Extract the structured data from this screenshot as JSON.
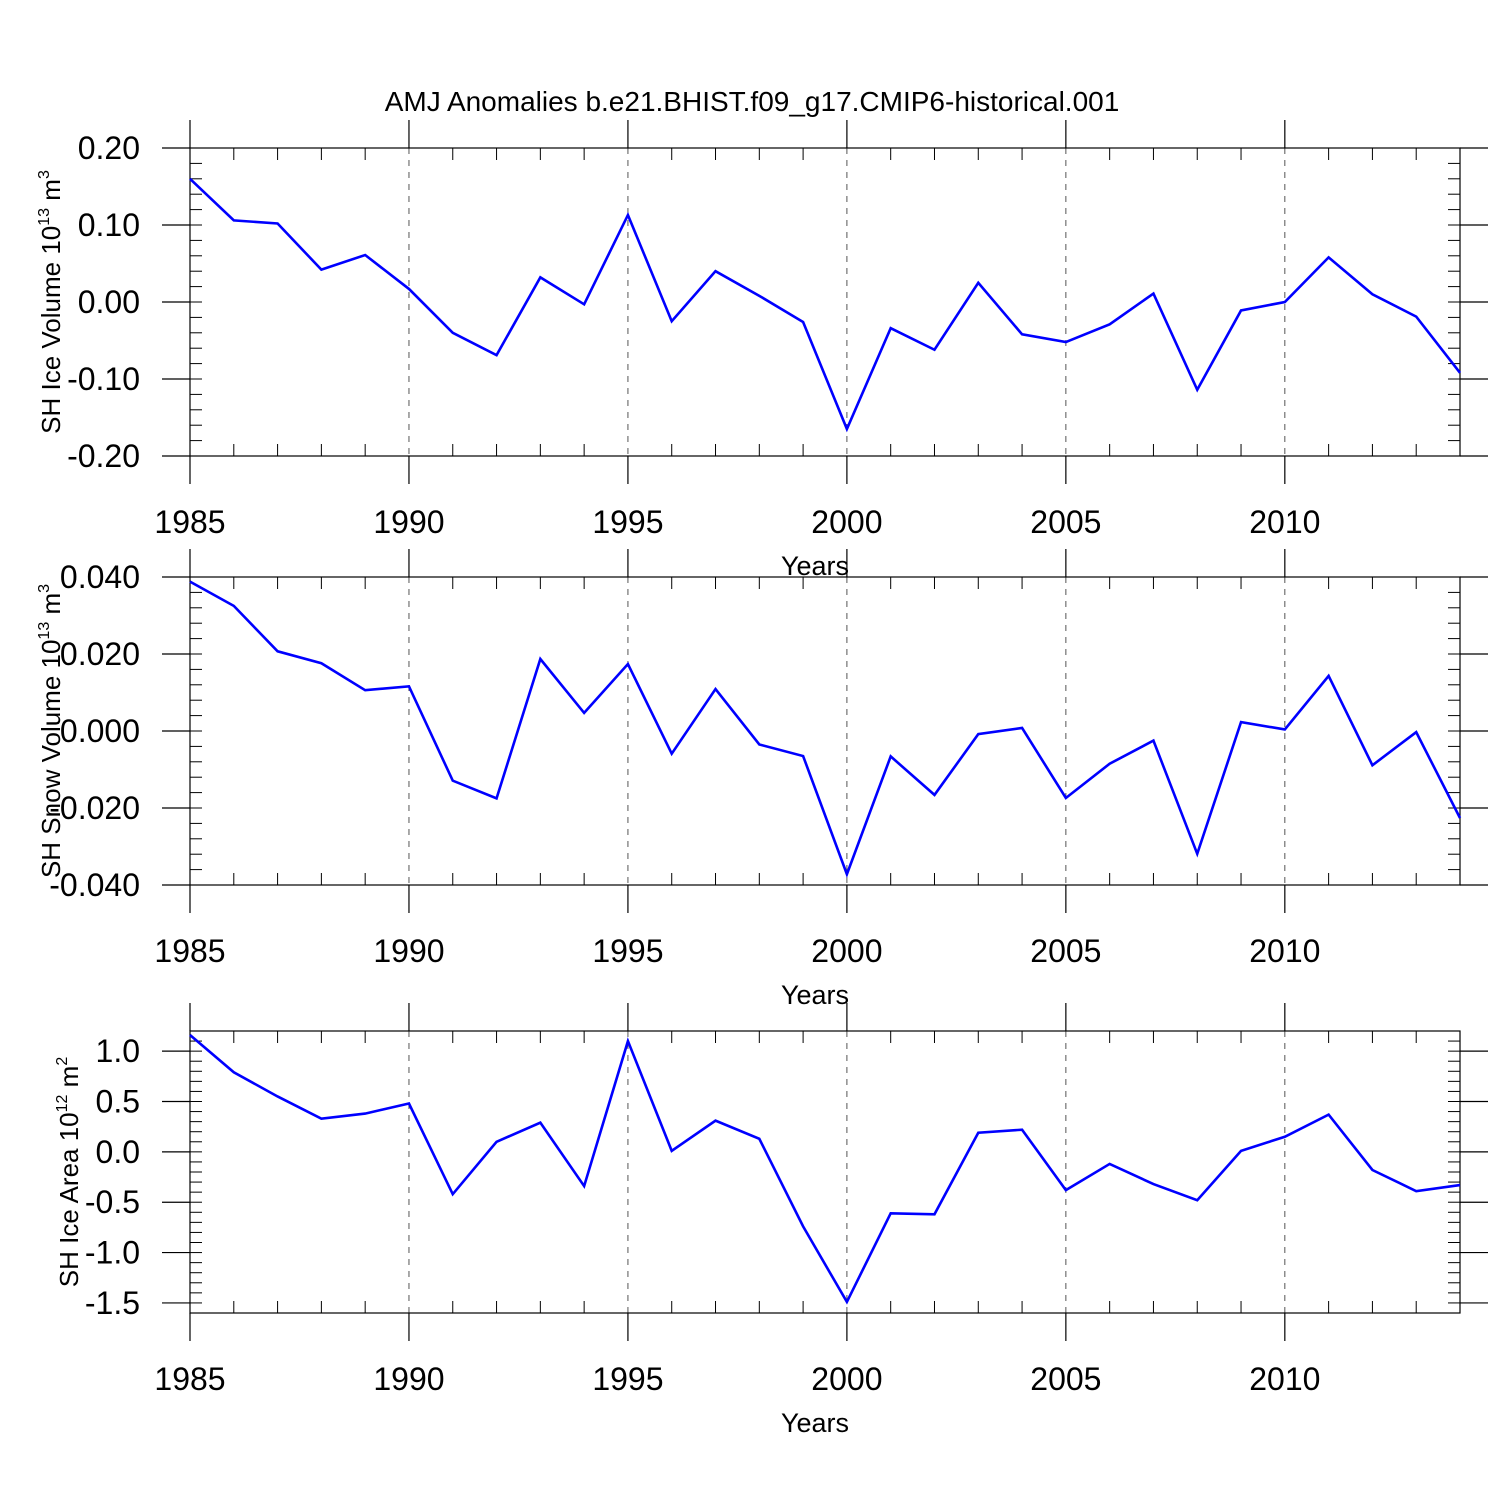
{
  "title": "AMJ Anomalies b.e21.BHIST.f09_g17.CMIP6-historical.001",
  "colors": {
    "line": "#0000ff",
    "axes": "#000000",
    "grid": "#555555",
    "background": "#ffffff"
  },
  "chart_data": [
    {
      "type": "line",
      "xlabel": "Years",
      "ylabel": {
        "prefix": "SH Ice Volume 10",
        "exp": "13",
        "unit": " m",
        "unit_exp": "3"
      },
      "xlim": [
        1985,
        2014
      ],
      "ylim": [
        -0.2,
        0.2
      ],
      "xticks": [
        1985,
        1990,
        1995,
        2000,
        2005,
        2010
      ],
      "xtick_labels": [
        "1985",
        "1990",
        "1995",
        "2000",
        "2005",
        "2010"
      ],
      "yticks": [
        0.2,
        0.1,
        0.0,
        -0.1,
        -0.2
      ],
      "ytick_labels": [
        "0.20",
        "0.10",
        "0.00",
        "-0.10",
        "-0.20"
      ],
      "grid": "vertical dashed at labeled years",
      "x": [
        1985,
        1986,
        1987,
        1988,
        1989,
        1990,
        1991,
        1992,
        1993,
        1994,
        1995,
        1996,
        1997,
        1998,
        1999,
        2000,
        2001,
        2002,
        2003,
        2004,
        2005,
        2006,
        2007,
        2008,
        2009,
        2010,
        2011,
        2012,
        2013,
        2014
      ],
      "values": [
        0.16,
        0.106,
        0.102,
        0.042,
        0.061,
        0.017,
        -0.04,
        -0.069,
        0.032,
        -0.003,
        0.113,
        -0.025,
        0.04,
        0.008,
        -0.026,
        -0.165,
        -0.034,
        -0.062,
        0.025,
        -0.042,
        -0.052,
        -0.029,
        0.011,
        -0.114,
        -0.011,
        0.0,
        0.058,
        0.01,
        -0.019,
        -0.092
      ]
    },
    {
      "type": "line",
      "xlabel": "Years",
      "ylabel": {
        "prefix": "SH Snow Volume 10",
        "exp": "13",
        "unit": " m",
        "unit_exp": "3"
      },
      "xlim": [
        1985,
        2014
      ],
      "ylim": [
        -0.04,
        0.04
      ],
      "xticks": [
        1985,
        1990,
        1995,
        2000,
        2005,
        2010
      ],
      "xtick_labels": [
        "1985",
        "1990",
        "1995",
        "2000",
        "2005",
        "2010"
      ],
      "yticks": [
        0.04,
        0.02,
        0.0,
        -0.02,
        -0.04
      ],
      "ytick_labels": [
        "0.040",
        "0.020",
        "0.000",
        "-0.020",
        "-0.040"
      ],
      "grid": "vertical dashed at labeled years",
      "x": [
        1985,
        1986,
        1987,
        1988,
        1989,
        1990,
        1991,
        1992,
        1993,
        1994,
        1995,
        1996,
        1997,
        1998,
        1999,
        2000,
        2001,
        2002,
        2003,
        2004,
        2005,
        2006,
        2007,
        2008,
        2009,
        2010,
        2011,
        2012,
        2013,
        2014
      ],
      "values": [
        0.0388,
        0.0325,
        0.0207,
        0.0176,
        0.0106,
        0.0116,
        -0.0129,
        -0.0175,
        0.0187,
        0.0047,
        0.0174,
        -0.0059,
        0.0109,
        -0.0035,
        -0.0065,
        -0.0372,
        -0.0066,
        -0.0166,
        -0.0008,
        0.0008,
        -0.0174,
        -0.0085,
        -0.0025,
        -0.0319,
        0.0023,
        0.0004,
        0.0143,
        -0.0089,
        -0.0003,
        -0.0226
      ]
    },
    {
      "type": "line",
      "xlabel": "Years",
      "ylabel": {
        "prefix": "SH Ice Area 10",
        "exp": "12",
        "unit": " m",
        "unit_exp": "2"
      },
      "xlim": [
        1985,
        2014
      ],
      "ylim": [
        -1.6,
        1.2
      ],
      "xticks": [
        1985,
        1990,
        1995,
        2000,
        2005,
        2010
      ],
      "xtick_labels": [
        "1985",
        "1990",
        "1995",
        "2000",
        "2005",
        "2010"
      ],
      "yticks": [
        1.0,
        0.5,
        0.0,
        -0.5,
        -1.0,
        -1.5
      ],
      "ytick_labels": [
        "1.0",
        "0.5",
        "0.0",
        "-0.5",
        "-1.0",
        "-1.5"
      ],
      "grid": "vertical dashed at labeled years",
      "x": [
        1985,
        1986,
        1987,
        1988,
        1989,
        1990,
        1991,
        1992,
        1993,
        1994,
        1995,
        1996,
        1997,
        1998,
        1999,
        2000,
        2001,
        2002,
        2003,
        2004,
        2005,
        2006,
        2007,
        2008,
        2009,
        2010,
        2011,
        2012,
        2013,
        2014
      ],
      "values": [
        1.16,
        0.79,
        0.55,
        0.33,
        0.38,
        0.48,
        -0.42,
        0.1,
        0.29,
        -0.34,
        1.1,
        0.01,
        0.31,
        0.13,
        -0.74,
        -1.49,
        -0.61,
        -0.62,
        0.19,
        0.22,
        -0.38,
        -0.12,
        -0.32,
        -0.48,
        0.01,
        0.15,
        0.37,
        -0.18,
        -0.39,
        -0.33
      ]
    }
  ]
}
